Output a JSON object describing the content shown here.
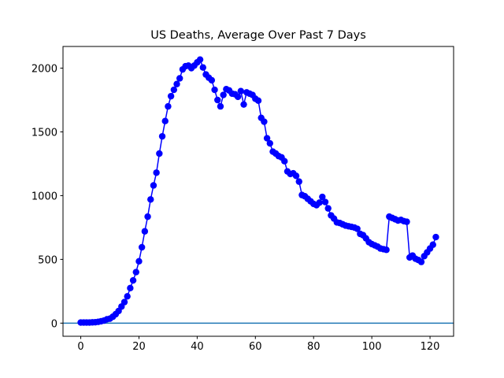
{
  "chart_data": {
    "type": "line",
    "title": "US Deaths, Average Over Past 7 Days",
    "x": [
      0,
      1,
      2,
      3,
      4,
      5,
      6,
      7,
      8,
      9,
      10,
      11,
      12,
      13,
      14,
      15,
      16,
      17,
      18,
      19,
      20,
      21,
      22,
      23,
      24,
      25,
      26,
      27,
      28,
      29,
      30,
      31,
      32,
      33,
      34,
      35,
      36,
      37,
      38,
      39,
      40,
      41,
      42,
      43,
      44,
      45,
      46,
      47,
      48,
      49,
      50,
      51,
      52,
      53,
      54,
      55,
      56,
      57,
      58,
      59,
      60,
      61,
      62,
      63,
      64,
      65,
      66,
      67,
      68,
      69,
      70,
      71,
      72,
      73,
      74,
      75,
      76,
      77,
      78,
      79,
      80,
      81,
      82,
      83,
      84,
      85,
      86,
      87,
      88,
      89,
      90,
      91,
      92,
      93,
      94,
      95,
      96,
      97,
      98,
      99,
      100,
      101,
      102,
      103,
      104,
      105,
      106,
      107,
      108,
      109,
      110,
      111,
      112,
      113,
      114,
      115,
      116,
      117,
      118,
      119,
      120,
      121,
      122
    ],
    "series": [
      {
        "color": "#0000ff",
        "values": [
          5,
          5,
          5,
          5,
          6,
          7,
          10,
          15,
          20,
          30,
          35,
          50,
          70,
          95,
          130,
          165,
          210,
          275,
          335,
          400,
          485,
          595,
          720,
          835,
          970,
          1080,
          1180,
          1330,
          1465,
          1585,
          1700,
          1780,
          1830,
          1875,
          1920,
          1990,
          2015,
          2020,
          2000,
          2020,
          2045,
          2067,
          2005,
          1950,
          1925,
          1905,
          1830,
          1750,
          1700,
          1790,
          1835,
          1825,
          1800,
          1795,
          1775,
          1820,
          1715,
          1810,
          1800,
          1790,
          1760,
          1745,
          1610,
          1580,
          1450,
          1410,
          1345,
          1330,
          1310,
          1300,
          1270,
          1190,
          1170,
          1175,
          1155,
          1110,
          1005,
          995,
          975,
          955,
          935,
          925,
          945,
          990,
          950,
          900,
          845,
          820,
          790,
          785,
          775,
          765,
          760,
          755,
          750,
          740,
          700,
          690,
          665,
          635,
          620,
          610,
          600,
          585,
          580,
          575,
          835,
          825,
          815,
          805,
          810,
          800,
          795,
          515,
          530,
          505,
          495,
          480,
          525,
          555,
          585,
          615,
          675
        ]
      }
    ],
    "reference_line": {
      "value": 0,
      "color": "#1f77b4"
    },
    "xlim": [
      -6.1,
      128.1
    ],
    "xticks": [
      0,
      20,
      40,
      60,
      80,
      100,
      120
    ],
    "ylim": [
      -103,
      2170
    ],
    "yticks": [
      0,
      500,
      1000,
      1500,
      2000
    ]
  }
}
